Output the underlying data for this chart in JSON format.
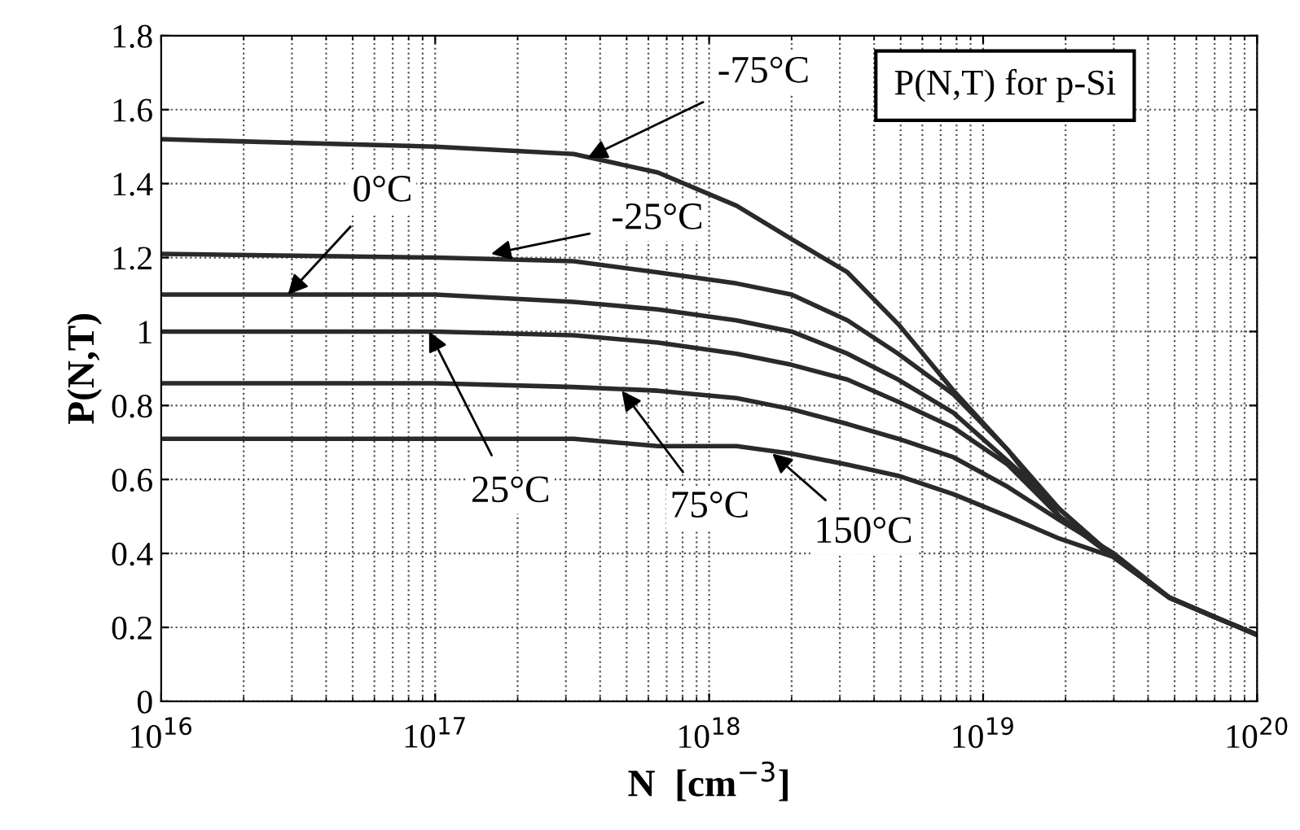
{
  "chart_data": {
    "type": "line",
    "title": "P(N,T) for p-Si",
    "xlabel": "N  [cm$^{−3}$]",
    "ylabel": "P(N,T)",
    "x": [
      1e+16,
      1e+17,
      3.2e+17,
      6.5e+17,
      1.26e+18,
      2e+18,
      3.2e+18,
      4.9e+18,
      7.8e+18,
      1.23e+19,
      1.9e+19,
      3e+19,
      4.8e+19,
      6.9e+19,
      1e+20
    ],
    "series": [
      {
        "color": "#2a2a2a",
        "values": [
          1.52,
          1.5,
          1.48,
          1.43,
          1.34,
          1.25,
          1.16,
          1.02,
          0.84,
          0.68,
          0.52,
          0.39,
          0.28,
          0.23,
          0.18
        ]
      },
      {
        "color": "#2a2a2a",
        "values": [
          1.21,
          1.2,
          1.19,
          1.16,
          1.13,
          1.1,
          1.03,
          0.94,
          0.83,
          0.68,
          0.5,
          0.39,
          0.28,
          0.23,
          0.18
        ]
      },
      {
        "color": "#2a2a2a",
        "values": [
          1.1,
          1.1,
          1.08,
          1.06,
          1.03,
          1.0,
          0.94,
          0.87,
          0.78,
          0.65,
          0.52,
          0.39,
          0.28,
          0.23,
          0.18
        ]
      },
      {
        "color": "#2a2a2a",
        "values": [
          1.0,
          1.0,
          0.99,
          0.97,
          0.94,
          0.91,
          0.87,
          0.81,
          0.74,
          0.64,
          0.5,
          0.39,
          0.28,
          0.23,
          0.18
        ]
      },
      {
        "color": "#2a2a2a",
        "values": [
          0.86,
          0.86,
          0.85,
          0.84,
          0.82,
          0.79,
          0.75,
          0.71,
          0.66,
          0.58,
          0.49,
          0.4,
          0.28,
          0.23,
          0.18
        ]
      },
      {
        "color": "#2a2a2a",
        "values": [
          0.71,
          0.71,
          0.71,
          0.69,
          0.69,
          0.67,
          0.64,
          0.61,
          0.56,
          0.5,
          0.44,
          0.39,
          0.28,
          0.23,
          0.18
        ]
      }
    ],
    "annotations": [
      {
        "text": "-75°C",
        "x": 3.6e+17,
        "y": 1.47
      },
      {
        "text": "-25°C",
        "x": 1.6e+17,
        "y": 1.21
      },
      {
        "text": "0°C",
        "x": 2.9e+16,
        "y": 1.1
      },
      {
        "text": "25°C",
        "x": 9.5e+16,
        "y": 1.0
      },
      {
        "text": "75°C",
        "x": 4.8e+17,
        "y": 0.84
      },
      {
        "text": "150°C",
        "x": 1.7e+18,
        "y": 0.67
      }
    ],
    "log": "x",
    "xlim": [
      1e+16,
      1e+20
    ],
    "xticks": [
      {
        "value": 1e+16,
        "label": "10$^{16}$"
      },
      {
        "value": 1e+17,
        "label": "10$^{17}$"
      },
      {
        "value": 1e+18,
        "label": "10$^{18}$"
      },
      {
        "value": 1e+19,
        "label": "10$^{19}$"
      },
      {
        "value": 1e+20,
        "label": "10$^{20}$"
      }
    ],
    "ylim": [
      0,
      1.8
    ],
    "yticks": [
      0,
      0.2,
      0.4,
      0.6,
      0.8,
      1,
      1.2,
      1.4,
      1.6,
      1.8
    ],
    "grid": true,
    "legend": false,
    "marker": "none",
    "line_style": "solid"
  }
}
